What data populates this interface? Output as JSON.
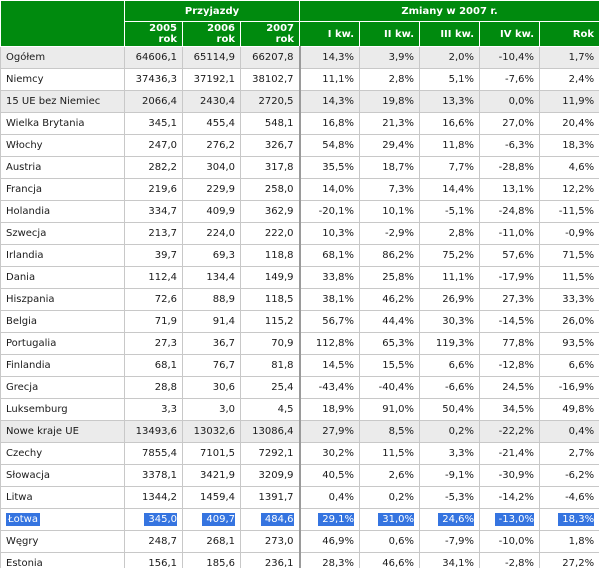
{
  "header": {
    "group1": "Przyjazdy",
    "group2": "Zmiany w 2007 r.",
    "columns": [
      "2005 rok",
      "2006 rok",
      "2007 rok",
      "I kw.",
      "II kw.",
      "III kw.",
      "IV kw.",
      "Rok"
    ]
  },
  "rows": [
    {
      "name": "Ogółem",
      "v": [
        "64606,1",
        "65114,9",
        "66207,8",
        "14,3%",
        "3,9%",
        "2,0%",
        "-10,4%",
        "1,7%"
      ],
      "shaded": true
    },
    {
      "name": "Niemcy",
      "v": [
        "37436,3",
        "37192,1",
        "38102,7",
        "11,1%",
        "2,8%",
        "5,1%",
        "-7,6%",
        "2,4%"
      ]
    },
    {
      "name": "15 UE bez Niemiec",
      "v": [
        "2066,4",
        "2430,4",
        "2720,5",
        "14,3%",
        "19,8%",
        "13,3%",
        "0,0%",
        "11,9%"
      ],
      "shaded": true
    },
    {
      "name": "Wielka Brytania",
      "v": [
        "345,1",
        "455,4",
        "548,1",
        "16,8%",
        "21,3%",
        "16,6%",
        "27,0%",
        "20,4%"
      ]
    },
    {
      "name": "Włochy",
      "v": [
        "247,0",
        "276,2",
        "326,7",
        "54,8%",
        "29,4%",
        "11,8%",
        "-6,3%",
        "18,3%"
      ]
    },
    {
      "name": "Austria",
      "v": [
        "282,2",
        "304,0",
        "317,8",
        "35,5%",
        "18,7%",
        "7,7%",
        "-28,8%",
        "4,6%"
      ]
    },
    {
      "name": "Francja",
      "v": [
        "219,6",
        "229,9",
        "258,0",
        "14,0%",
        "7,3%",
        "14,4%",
        "13,1%",
        "12,2%"
      ]
    },
    {
      "name": "Holandia",
      "v": [
        "334,7",
        "409,9",
        "362,9",
        "-20,1%",
        "10,1%",
        "-5,1%",
        "-24,8%",
        "-11,5%"
      ]
    },
    {
      "name": "Szwecja",
      "v": [
        "213,7",
        "224,0",
        "222,0",
        "10,3%",
        "-2,9%",
        "2,8%",
        "-11,0%",
        "-0,9%"
      ]
    },
    {
      "name": "Irlandia",
      "v": [
        "39,7",
        "69,3",
        "118,8",
        "68,1%",
        "86,2%",
        "75,2%",
        "57,6%",
        "71,5%"
      ]
    },
    {
      "name": "Dania",
      "v": [
        "112,4",
        "134,4",
        "149,9",
        "33,8%",
        "25,8%",
        "11,1%",
        "-17,9%",
        "11,5%"
      ]
    },
    {
      "name": "Hiszpania",
      "v": [
        "72,6",
        "88,9",
        "118,5",
        "38,1%",
        "46,2%",
        "26,9%",
        "27,3%",
        "33,3%"
      ]
    },
    {
      "name": "Belgia",
      "v": [
        "71,9",
        "91,4",
        "115,2",
        "56,7%",
        "44,4%",
        "30,3%",
        "-14,5%",
        "26,0%"
      ]
    },
    {
      "name": "Portugalia",
      "v": [
        "27,3",
        "36,7",
        "70,9",
        "112,8%",
        "65,3%",
        "119,3%",
        "77,8%",
        "93,5%"
      ]
    },
    {
      "name": "Finlandia",
      "v": [
        "68,1",
        "76,7",
        "81,8",
        "14,5%",
        "15,5%",
        "6,6%",
        "-12,8%",
        "6,6%"
      ]
    },
    {
      "name": "Grecja",
      "v": [
        "28,8",
        "30,6",
        "25,4",
        "-43,4%",
        "-40,4%",
        "-6,6%",
        "24,5%",
        "-16,9%"
      ]
    },
    {
      "name": "Luksemburg",
      "v": [
        "3,3",
        "3,0",
        "4,5",
        "18,9%",
        "91,0%",
        "50,4%",
        "34,5%",
        "49,8%"
      ]
    },
    {
      "name": "Nowe kraje UE",
      "v": [
        "13493,6",
        "13032,6",
        "13086,4",
        "27,9%",
        "8,5%",
        "0,2%",
        "-22,2%",
        "0,4%"
      ],
      "shaded": true
    },
    {
      "name": "Czechy",
      "v": [
        "7855,4",
        "7101,5",
        "7292,1",
        "30,2%",
        "11,5%",
        "3,3%",
        "-21,4%",
        "2,7%"
      ]
    },
    {
      "name": "Słowacja",
      "v": [
        "3378,1",
        "3421,9",
        "3209,9",
        "40,5%",
        "2,6%",
        "-9,1%",
        "-30,9%",
        "-6,2%"
      ]
    },
    {
      "name": "Litwa",
      "v": [
        "1344,2",
        "1459,4",
        "1391,7",
        "0,4%",
        "0,2%",
        "-5,3%",
        "-14,2%",
        "-4,6%"
      ]
    },
    {
      "name": "Łotwa",
      "v": [
        "345,0",
        "409,7",
        "484,6",
        "29,1%",
        "31,0%",
        "24,6%",
        "-13,0%",
        "18,3%"
      ],
      "selected": true
    },
    {
      "name": "Węgry",
      "v": [
        "248,7",
        "268,1",
        "273,0",
        "46,9%",
        "0,6%",
        "-7,9%",
        "-10,0%",
        "1,8%"
      ]
    },
    {
      "name": "Estonia",
      "v": [
        "156,1",
        "185,6",
        "236,1",
        "28,3%",
        "46,6%",
        "34,1%",
        "-2,8%",
        "27,2%"
      ]
    }
  ],
  "colors": {
    "header_bg": "#008a0e",
    "shaded_row_bg": "#ebebeb",
    "selection_bg": "#3574e0"
  }
}
